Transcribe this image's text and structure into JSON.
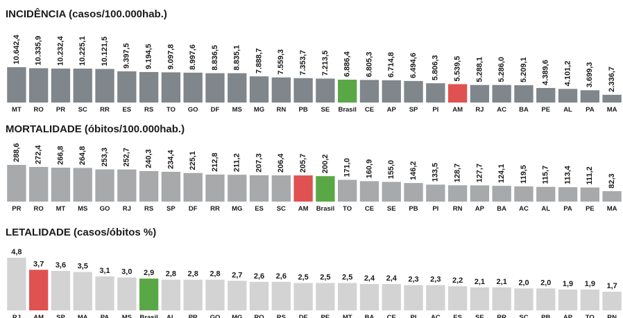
{
  "chart_data": [
    {
      "type": "bar",
      "title": "INCIDÊNCIA (casos/100.000hab.)",
      "categories": [
        "MT",
        "RO",
        "PR",
        "SC",
        "RR",
        "ES",
        "RS",
        "TO",
        "GO",
        "DF",
        "MS",
        "MG",
        "RN",
        "PB",
        "SE",
        "Brasil",
        "CE",
        "AP",
        "SP",
        "PI",
        "AM",
        "RJ",
        "AC",
        "BA",
        "PE",
        "AL",
        "PA",
        "MA"
      ],
      "values": [
        10642.4,
        10335.9,
        10232.4,
        10225.1,
        10121.5,
        9397.5,
        9194.5,
        9097.8,
        8997.6,
        8836.5,
        8835.1,
        7888.7,
        7559.3,
        7353.7,
        7213.5,
        6886.4,
        6805.3,
        6714.8,
        6494.6,
        5806.3,
        5539.5,
        5288.1,
        5286.0,
        5209.1,
        4389.6,
        4101.2,
        3699.3,
        2336.7
      ],
      "value_labels": [
        "10.642,4",
        "10.335,9",
        "10.232,4",
        "10.225,1",
        "10.121,5",
        "9.397,5",
        "9.194,5",
        "9.097,8",
        "8.997,6",
        "8.836,5",
        "8.835,1",
        "7.888,7",
        "7.559,3",
        "7.353,7",
        "7.213,5",
        "6.886,4",
        "6.805,3",
        "6.714,8",
        "6.494,6",
        "5.806,3",
        "5.539,5",
        "5.288,1",
        "5.286,0",
        "5.209,1",
        "4.389,6",
        "4.101,2",
        "3.699,3",
        "2.336,7"
      ],
      "colors": [
        "#7f868c",
        "#7f868c",
        "#7f868c",
        "#7f868c",
        "#7f868c",
        "#7f868c",
        "#7f868c",
        "#7f868c",
        "#7f868c",
        "#7f868c",
        "#7f868c",
        "#7f868c",
        "#7f868c",
        "#7f868c",
        "#7f868c",
        "#5aa845",
        "#7f868c",
        "#7f868c",
        "#7f868c",
        "#7f868c",
        "#e05252",
        "#7f868c",
        "#7f868c",
        "#7f868c",
        "#7f868c",
        "#7f868c",
        "#7f868c",
        "#7f868c"
      ]
    },
    {
      "type": "bar",
      "title": "MORTALIDADE (óbitos/100.000hab.)",
      "categories": [
        "PR",
        "RO",
        "MT",
        "MS",
        "GO",
        "RJ",
        "RS",
        "SP",
        "DF",
        "RR",
        "MG",
        "ES",
        "SC",
        "AM",
        "Brasil",
        "TO",
        "CE",
        "SE",
        "PB",
        "PI",
        "RN",
        "AP",
        "BA",
        "AC",
        "AL",
        "PA",
        "PE",
        "MA"
      ],
      "values": [
        288.6,
        272.4,
        266.8,
        264.8,
        253.3,
        252.7,
        240.3,
        234.4,
        225.1,
        212.8,
        211.2,
        207.3,
        206.4,
        205.7,
        200.2,
        171.0,
        160.9,
        155.0,
        146.2,
        133.5,
        128.7,
        127.7,
        124.1,
        119.5,
        115.7,
        113.4,
        111.2,
        82.3
      ],
      "value_labels": [
        "288,6",
        "272,4",
        "266,8",
        "264,8",
        "253,3",
        "252,7",
        "240,3",
        "234,4",
        "225,1",
        "212,8",
        "211,2",
        "207,3",
        "206,4",
        "205,7",
        "200,2",
        "171,0",
        "160,9",
        "155,0",
        "146,2",
        "133,5",
        "128,7",
        "127,7",
        "124,1",
        "119,5",
        "115,7",
        "113,4",
        "111,2",
        "82,3"
      ],
      "colors": [
        "#a7a9ab",
        "#a7a9ab",
        "#a7a9ab",
        "#a7a9ab",
        "#a7a9ab",
        "#a7a9ab",
        "#a7a9ab",
        "#a7a9ab",
        "#a7a9ab",
        "#a7a9ab",
        "#a7a9ab",
        "#a7a9ab",
        "#a7a9ab",
        "#e05252",
        "#5aa845",
        "#a7a9ab",
        "#a7a9ab",
        "#a7a9ab",
        "#a7a9ab",
        "#a7a9ab",
        "#a7a9ab",
        "#a7a9ab",
        "#a7a9ab",
        "#a7a9ab",
        "#a7a9ab",
        "#a7a9ab",
        "#a7a9ab",
        "#a7a9ab"
      ]
    },
    {
      "type": "bar",
      "title": "LETALIDADE (casos/óbitos %)",
      "categories": [
        "RJ",
        "AM",
        "SP",
        "MA",
        "PA",
        "MS",
        "Brasil",
        "AL",
        "PR",
        "GO",
        "MG",
        "RO",
        "RS",
        "DF",
        "PE",
        "MT",
        "BA",
        "CE",
        "PI",
        "AC",
        "ES",
        "SE",
        "RR",
        "SC",
        "PB",
        "AP",
        "TO",
        "RN"
      ],
      "values": [
        4.8,
        3.7,
        3.6,
        3.5,
        3.1,
        3.0,
        2.9,
        2.8,
        2.8,
        2.8,
        2.7,
        2.6,
        2.6,
        2.5,
        2.5,
        2.5,
        2.4,
        2.4,
        2.3,
        2.3,
        2.2,
        2.1,
        2.1,
        2.0,
        2.0,
        1.9,
        1.9,
        1.7
      ],
      "value_labels": [
        "4,8",
        "3,7",
        "3,6",
        "3,5",
        "3,1",
        "3,0",
        "2,9",
        "2,8",
        "2,8",
        "2,8",
        "2,7",
        "2,6",
        "2,6",
        "2,5",
        "2,5",
        "2,5",
        "2,4",
        "2,4",
        "2,3",
        "2,3",
        "2,2",
        "2,1",
        "2,1",
        "2,0",
        "2,0",
        "1,9",
        "1,9",
        "1,7"
      ],
      "colors": [
        "#d3d3d3",
        "#e05252",
        "#d3d3d3",
        "#d3d3d3",
        "#d3d3d3",
        "#d3d3d3",
        "#5aa845",
        "#d3d3d3",
        "#d3d3d3",
        "#d3d3d3",
        "#d3d3d3",
        "#d3d3d3",
        "#d3d3d3",
        "#d3d3d3",
        "#d3d3d3",
        "#d3d3d3",
        "#d3d3d3",
        "#d3d3d3",
        "#d3d3d3",
        "#d3d3d3",
        "#d3d3d3",
        "#d3d3d3",
        "#d3d3d3",
        "#d3d3d3",
        "#d3d3d3",
        "#d3d3d3",
        "#d3d3d3",
        "#d3d3d3"
      ]
    }
  ]
}
